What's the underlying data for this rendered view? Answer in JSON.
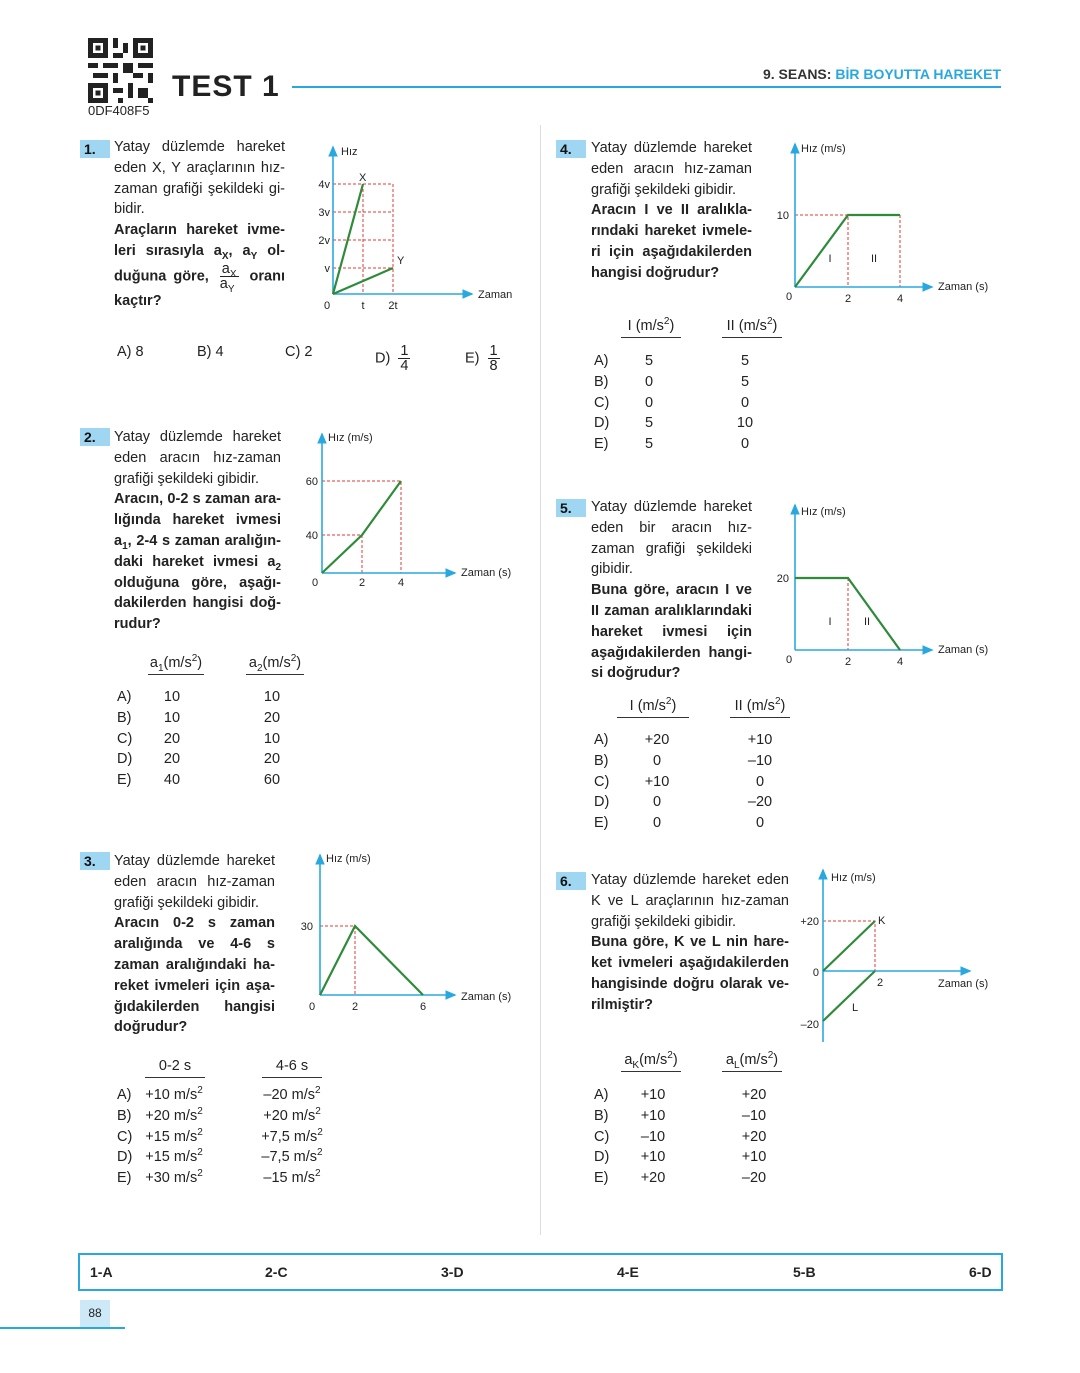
{
  "header": {
    "qr_code_id": "0DF408F5",
    "test_title": "TEST 1",
    "session_prefix": "9. SEANS: ",
    "session_topic": "BİR BOYUTTA HAREKET"
  },
  "colors": {
    "accent": "#29a8e0",
    "number_box": "#9fd6f2",
    "graph_line": "#2e8b3a",
    "guide_line": "#e53935"
  },
  "questions": [
    {
      "number": "1.",
      "lines": [
        [
          {
            "t": "Yatay düzlemde hareket"
          }
        ],
        [
          {
            "t": "eden X, Y araçlarının hız-"
          }
        ],
        [
          {
            "t": "zaman grafiği şekildeki gi-"
          }
        ],
        [
          {
            "t": "bidir."
          }
        ],
        [
          {
            "t": "Araçların hareket ivme-",
            "b": 1
          }
        ],
        [
          {
            "t": "leri sırasıyla a",
            "b": 1
          },
          {
            "s": "X",
            "b": 1
          },
          {
            "t": ", a",
            "b": 1
          },
          {
            "s": "Y",
            "b": 1
          },
          {
            "t": " ol-",
            "b": 1
          }
        ],
        [
          {
            "t": "duğuna göre, ",
            "b": 1
          },
          {
            "f": [
              [
                {
                  "t": "a"
                },
                {
                  "s": "X"
                }
              ],
              [
                {
                  "t": "a"
                },
                {
                  "s": "Y"
                }
              ]
            ]
          },
          {
            "t": " oranı",
            "b": 1
          }
        ],
        [
          {
            "t": "kaçtır?",
            "b": 1
          }
        ]
      ],
      "graph": {
        "y_label": "Hız",
        "x_label": "Zaman",
        "y_ticks": [
          "4v",
          "3v",
          "2v",
          "v"
        ],
        "x_ticks": [
          "0",
          "t",
          "2t"
        ],
        "series": [
          "X",
          "Y"
        ]
      },
      "options": [
        [
          {
            "t": "A) 8"
          }
        ],
        [
          {
            "t": "B) 4"
          }
        ],
        [
          {
            "t": "C) 2"
          }
        ],
        [
          {
            "t": "D) "
          },
          {
            "f": [
              [
                {
                  "t": "1"
                }
              ],
              [
                {
                  "t": "4"
                }
              ]
            ]
          }
        ],
        [
          {
            "t": "E) "
          },
          {
            "f": [
              [
                {
                  "t": "1"
                }
              ],
              [
                {
                  "t": "8"
                }
              ]
            ]
          }
        ]
      ]
    },
    {
      "number": "2.",
      "lines": [
        [
          {
            "t": "Yatay düzlemde hareket"
          }
        ],
        [
          {
            "t": "eden aracın hız-zaman"
          }
        ],
        [
          {
            "t": "grafiği şekildeki gibidir."
          }
        ],
        [
          {
            "t": "Aracın, 0-2 s zaman ara-",
            "b": 1
          }
        ],
        [
          {
            "t": "lığında hareket ivmesi",
            "b": 1
          }
        ],
        [
          {
            "t": "a",
            "b": 1
          },
          {
            "s": "1",
            "b": 1
          },
          {
            "t": ", 2-4 s zaman aralığın-",
            "b": 1
          }
        ],
        [
          {
            "t": "daki hareket ivmesi a",
            "b": 1
          },
          {
            "s": "2",
            "b": 1
          }
        ],
        [
          {
            "t": "olduğuna göre, aşağı-",
            "b": 1
          }
        ],
        [
          {
            "t": "dakilerden hangisi doğ-",
            "b": 1
          }
        ],
        [
          {
            "t": "rudur?",
            "b": 1
          }
        ]
      ],
      "graph": {
        "y_label": "Hız (m/s)",
        "x_label": "Zaman (s)",
        "y_ticks": [
          "60",
          "40"
        ],
        "x_ticks": [
          "0",
          "2",
          "4"
        ]
      },
      "table": {
        "headers": [
          [
            {
              "t": "a"
            },
            {
              "s": "1"
            },
            {
              "t": "(m/s"
            },
            {
              "p": "2"
            },
            {
              "t": ")"
            }
          ],
          [
            {
              "t": "a"
            },
            {
              "s": "2"
            },
            {
              "t": "(m/s"
            },
            {
              "p": "2"
            },
            {
              "t": ")"
            }
          ]
        ],
        "rows": [
          {
            "letter": "A)",
            "values": [
              [
                {
                  "t": "10"
                }
              ],
              [
                {
                  "t": "10"
                }
              ]
            ]
          },
          {
            "letter": "B)",
            "values": [
              [
                {
                  "t": "10"
                }
              ],
              [
                {
                  "t": "20"
                }
              ]
            ]
          },
          {
            "letter": "C)",
            "values": [
              [
                {
                  "t": "20"
                }
              ],
              [
                {
                  "t": "10"
                }
              ]
            ]
          },
          {
            "letter": "D)",
            "values": [
              [
                {
                  "t": "20"
                }
              ],
              [
                {
                  "t": "20"
                }
              ]
            ]
          },
          {
            "letter": "E)",
            "values": [
              [
                {
                  "t": "40"
                }
              ],
              [
                {
                  "t": "60"
                }
              ]
            ]
          }
        ]
      }
    },
    {
      "number": "3.",
      "lines": [
        [
          {
            "t": "Yatay düzlemde hareket"
          }
        ],
        [
          {
            "t": "eden aracın hız-zaman"
          }
        ],
        [
          {
            "t": "grafiği şekildeki gibidir."
          }
        ],
        [
          {
            "t": "Aracın 0-2 s zaman",
            "b": 1
          }
        ],
        [
          {
            "t": "aralığında ve 4-6 s",
            "b": 1
          }
        ],
        [
          {
            "t": "zaman aralığındaki ha-",
            "b": 1
          }
        ],
        [
          {
            "t": "reket ivmeleri için aşa-",
            "b": 1
          }
        ],
        [
          {
            "t": "ğıdakilerden hangisi",
            "b": 1
          }
        ],
        [
          {
            "t": "doğrudur?",
            "b": 1
          }
        ]
      ],
      "graph": {
        "y_label": "Hız (m/s)",
        "x_label": "Zaman (s)",
        "y_ticks": [
          "30"
        ],
        "x_ticks": [
          "0",
          "2",
          "6"
        ]
      },
      "table": {
        "headers": [
          [
            {
              "t": "0-2 s"
            }
          ],
          [
            {
              "t": "4-6 s"
            }
          ]
        ],
        "rows": [
          {
            "letter": "A)",
            "values": [
              [
                {
                  "t": "+10 m/s"
                },
                {
                  "p": "2"
                }
              ],
              [
                {
                  "t": "–20 m/s"
                },
                {
                  "p": "2"
                }
              ]
            ]
          },
          {
            "letter": "B)",
            "values": [
              [
                {
                  "t": "+20 m/s"
                },
                {
                  "p": "2"
                }
              ],
              [
                {
                  "t": "+20 m/s"
                },
                {
                  "p": "2"
                }
              ]
            ]
          },
          {
            "letter": "C)",
            "values": [
              [
                {
                  "t": "+15 m/s"
                },
                {
                  "p": "2"
                }
              ],
              [
                {
                  "t": "+7,5 m/s"
                },
                {
                  "p": "2"
                }
              ]
            ]
          },
          {
            "letter": "D)",
            "values": [
              [
                {
                  "t": "+15 m/s"
                },
                {
                  "p": "2"
                }
              ],
              [
                {
                  "t": "–7,5 m/s"
                },
                {
                  "p": "2"
                }
              ]
            ]
          },
          {
            "letter": "E)",
            "values": [
              [
                {
                  "t": "+30 m/s"
                },
                {
                  "p": "2"
                }
              ],
              [
                {
                  "t": "–15 m/s"
                },
                {
                  "p": "2"
                }
              ]
            ]
          }
        ]
      }
    },
    {
      "number": "4.",
      "lines": [
        [
          {
            "t": "Yatay düzlemde hareket"
          }
        ],
        [
          {
            "t": "eden aracın hız-zaman"
          }
        ],
        [
          {
            "t": "grafiği şekildeki gibidir."
          }
        ],
        [
          {
            "t": "Aracın I ve II aralıkla-",
            "b": 1
          }
        ],
        [
          {
            "t": "rındaki hareket ivmele-",
            "b": 1
          }
        ],
        [
          {
            "t": "ri için aşağıdakilerden",
            "b": 1
          }
        ],
        [
          {
            "t": "hangisi doğrudur?",
            "b": 1
          }
        ]
      ],
      "graph": {
        "y_label": "Hız (m/s)",
        "x_label": "Zaman (s)",
        "y_ticks": [
          "10"
        ],
        "x_ticks": [
          "0",
          "2",
          "4"
        ],
        "regions": [
          "I",
          "II"
        ]
      },
      "table": {
        "headers": [
          [
            {
              "t": "I (m/s"
            },
            {
              "p": "2"
            },
            {
              "t": ")"
            }
          ],
          [
            {
              "t": "II (m/s"
            },
            {
              "p": "2"
            },
            {
              "t": ")"
            }
          ]
        ],
        "rows": [
          {
            "letter": "A)",
            "values": [
              [
                {
                  "t": "5"
                }
              ],
              [
                {
                  "t": "5"
                }
              ]
            ]
          },
          {
            "letter": "B)",
            "values": [
              [
                {
                  "t": "0"
                }
              ],
              [
                {
                  "t": "5"
                }
              ]
            ]
          },
          {
            "letter": "C)",
            "values": [
              [
                {
                  "t": "0"
                }
              ],
              [
                {
                  "t": "0"
                }
              ]
            ]
          },
          {
            "letter": "D)",
            "values": [
              [
                {
                  "t": "5"
                }
              ],
              [
                {
                  "t": "10"
                }
              ]
            ]
          },
          {
            "letter": "E)",
            "values": [
              [
                {
                  "t": "5"
                }
              ],
              [
                {
                  "t": "0"
                }
              ]
            ]
          }
        ]
      }
    },
    {
      "number": "5.",
      "lines": [
        [
          {
            "t": "Yatay düzlemde hareket"
          }
        ],
        [
          {
            "t": "eden bir aracın hız-"
          }
        ],
        [
          {
            "t": "zaman grafiği şekildeki"
          }
        ],
        [
          {
            "t": "gibidir."
          }
        ],
        [
          {
            "t": "Buna göre, aracın I ve",
            "b": 1
          }
        ],
        [
          {
            "t": "II zaman aralıklarındaki",
            "b": 1
          }
        ],
        [
          {
            "t": "hareket ivmesi için",
            "b": 1
          }
        ],
        [
          {
            "t": "aşağıdakilerden hangi-",
            "b": 1
          }
        ],
        [
          {
            "t": "si doğrudur?",
            "b": 1
          }
        ]
      ],
      "graph": {
        "y_label": "Hız (m/s)",
        "x_label": "Zaman (s)",
        "y_ticks": [
          "20"
        ],
        "x_ticks": [
          "0",
          "2",
          "4"
        ],
        "regions": [
          "I",
          "II"
        ]
      },
      "table": {
        "headers": [
          [
            {
              "t": "I (m/s"
            },
            {
              "p": "2"
            },
            {
              "t": ")"
            }
          ],
          [
            {
              "t": "II (m/s"
            },
            {
              "p": "2"
            },
            {
              "t": ")"
            }
          ]
        ],
        "rows": [
          {
            "letter": "A)",
            "values": [
              [
                {
                  "t": "+20"
                }
              ],
              [
                {
                  "t": "+10"
                }
              ]
            ]
          },
          {
            "letter": "B)",
            "values": [
              [
                {
                  "t": "0"
                }
              ],
              [
                {
                  "t": "–10"
                }
              ]
            ]
          },
          {
            "letter": "C)",
            "values": [
              [
                {
                  "t": "+10"
                }
              ],
              [
                {
                  "t": "0"
                }
              ]
            ]
          },
          {
            "letter": "D)",
            "values": [
              [
                {
                  "t": "0"
                }
              ],
              [
                {
                  "t": "–20"
                }
              ]
            ]
          },
          {
            "letter": "E)",
            "values": [
              [
                {
                  "t": "0"
                }
              ],
              [
                {
                  "t": "0"
                }
              ]
            ]
          }
        ]
      }
    },
    {
      "number": "6.",
      "lines": [
        [
          {
            "t": "Yatay düzlemde hareket eden"
          }
        ],
        [
          {
            "t": "K ve L araçlarının hız-zaman"
          }
        ],
        [
          {
            "t": "grafiği şekildeki gibidir."
          }
        ],
        [
          {
            "t": "Buna göre, K ve L nin hare-",
            "b": 1
          }
        ],
        [
          {
            "t": "ket ivmeleri aşağıdakilerden",
            "b": 1
          }
        ],
        [
          {
            "t": "hangisinde doğru olarak ve-",
            "b": 1
          }
        ],
        [
          {
            "t": "rilmiştir?",
            "b": 1
          }
        ]
      ],
      "graph": {
        "y_label": "Hız (m/s)",
        "x_label": "Zaman (s)",
        "y_ticks": [
          "+20",
          "0",
          "–20"
        ],
        "x_ticks": [
          "2"
        ],
        "series": [
          "K",
          "L"
        ]
      },
      "table": {
        "headers": [
          [
            {
              "t": "a"
            },
            {
              "s": "K"
            },
            {
              "t": "(m/s"
            },
            {
              "p": "2"
            },
            {
              "t": ")"
            }
          ],
          [
            {
              "t": "a"
            },
            {
              "s": "L"
            },
            {
              "t": "(m/s"
            },
            {
              "p": "2"
            },
            {
              "t": ")"
            }
          ]
        ],
        "rows": [
          {
            "letter": "A)",
            "values": [
              [
                {
                  "t": "+10"
                }
              ],
              [
                {
                  "t": "+20"
                }
              ]
            ]
          },
          {
            "letter": "B)",
            "values": [
              [
                {
                  "t": "+10"
                }
              ],
              [
                {
                  "t": "–10"
                }
              ]
            ]
          },
          {
            "letter": "C)",
            "values": [
              [
                {
                  "t": "–10"
                }
              ],
              [
                {
                  "t": "+20"
                }
              ]
            ]
          },
          {
            "letter": "D)",
            "values": [
              [
                {
                  "t": "+10"
                }
              ],
              [
                {
                  "t": "+10"
                }
              ]
            ]
          },
          {
            "letter": "E)",
            "values": [
              [
                {
                  "t": "+20"
                }
              ],
              [
                {
                  "t": "–20"
                }
              ]
            ]
          }
        ]
      }
    }
  ],
  "answer_key": [
    "1-A",
    "2-C",
    "3-D",
    "4-E",
    "5-B",
    "6-D"
  ],
  "page_number": "88"
}
